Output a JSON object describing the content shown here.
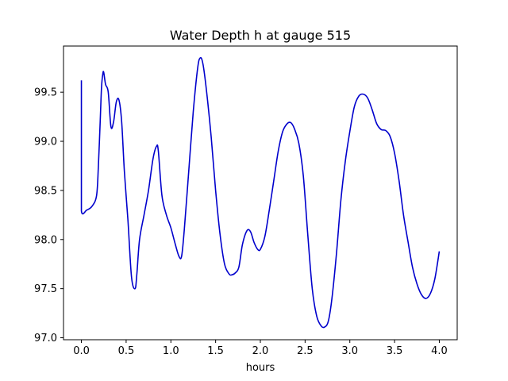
{
  "chart_data": {
    "type": "line",
    "title": "Water Depth h at gauge 515",
    "xlabel": "hours",
    "ylabel": "",
    "xlim": [
      -0.2,
      4.2
    ],
    "ylim": [
      96.98,
      99.97
    ],
    "xticks": [
      0.0,
      0.5,
      1.0,
      1.5,
      2.0,
      2.5,
      3.0,
      3.5,
      4.0
    ],
    "xtick_labels": [
      "0.0",
      "0.5",
      "1.0",
      "1.5",
      "2.0",
      "2.5",
      "3.0",
      "3.5",
      "4.0"
    ],
    "yticks": [
      97.0,
      97.5,
      98.0,
      98.5,
      99.0,
      99.5
    ],
    "ytick_labels": [
      "97.0",
      "97.5",
      "98.0",
      "98.5",
      "99.0",
      "99.5"
    ],
    "grid": false,
    "color": "#0000cc",
    "series": [
      {
        "x": [
          0.0,
          0.0,
          0.0,
          0.06,
          0.12,
          0.17,
          0.19,
          0.21,
          0.225,
          0.24,
          0.25,
          0.27,
          0.3,
          0.33,
          0.36,
          0.39,
          0.42,
          0.45,
          0.48,
          0.52,
          0.56,
          0.6,
          0.62,
          0.65,
          0.7,
          0.75,
          0.8,
          0.84,
          0.86,
          0.9,
          0.95,
          1.0,
          1.05,
          1.09,
          1.12,
          1.15,
          1.2,
          1.25,
          1.3,
          1.33,
          1.36,
          1.4,
          1.45,
          1.5,
          1.55,
          1.6,
          1.65,
          1.68,
          1.72,
          1.76,
          1.8,
          1.85,
          1.89,
          1.93,
          1.97,
          2.0,
          2.05,
          2.1,
          2.15,
          2.2,
          2.25,
          2.3,
          2.34,
          2.38,
          2.43,
          2.48,
          2.53,
          2.58,
          2.63,
          2.68,
          2.72,
          2.76,
          2.8,
          2.85,
          2.9,
          2.95,
          3.0,
          3.05,
          3.1,
          3.15,
          3.2,
          3.25,
          3.3,
          3.35,
          3.4,
          3.45,
          3.5,
          3.55,
          3.6,
          3.65,
          3.7,
          3.75,
          3.8,
          3.85,
          3.9,
          3.95,
          4.0
        ],
        "y": [
          99.62,
          98.7,
          98.29,
          98.3,
          98.34,
          98.45,
          98.75,
          99.2,
          99.55,
          99.69,
          99.7,
          99.58,
          99.5,
          99.15,
          99.2,
          99.4,
          99.42,
          99.2,
          98.7,
          98.2,
          97.62,
          97.5,
          97.65,
          98.0,
          98.25,
          98.5,
          98.82,
          98.95,
          98.9,
          98.45,
          98.25,
          98.12,
          97.95,
          97.83,
          97.83,
          98.1,
          98.7,
          99.3,
          99.75,
          99.85,
          99.78,
          99.5,
          99.05,
          98.5,
          98.05,
          97.75,
          97.65,
          97.64,
          97.66,
          97.72,
          97.95,
          98.09,
          98.08,
          97.97,
          97.9,
          97.9,
          98.03,
          98.3,
          98.6,
          98.9,
          99.1,
          99.18,
          99.19,
          99.13,
          98.98,
          98.65,
          98.05,
          97.5,
          97.22,
          97.12,
          97.11,
          97.17,
          97.4,
          97.85,
          98.4,
          98.8,
          99.1,
          99.35,
          99.46,
          99.48,
          99.44,
          99.32,
          99.18,
          99.12,
          99.11,
          99.05,
          98.88,
          98.6,
          98.25,
          97.98,
          97.72,
          97.55,
          97.44,
          97.4,
          97.45,
          97.6,
          97.88
        ]
      }
    ]
  }
}
